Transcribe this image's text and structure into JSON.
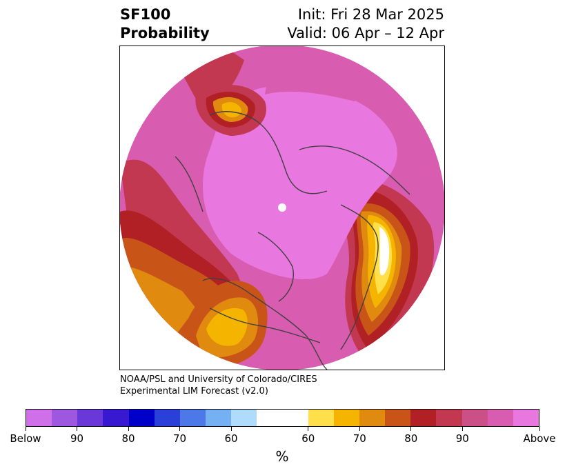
{
  "title": {
    "left_line1": "SF100",
    "left_line2": "Probability",
    "right_line1": "Init: Fri 28 Mar 2025",
    "right_line2": "Valid: 06 Apr – 12 Apr"
  },
  "credit": {
    "line1": "NOAA/PSL and University of Colorado/CIRES",
    "line2": "Experimental LIM Forecast (v2.0)"
  },
  "colorbar": {
    "unit": "%",
    "colors": [
      "#d070e8",
      "#9e58e0",
      "#6a38d8",
      "#3818d0",
      "#0000c8",
      "#2a40d8",
      "#4c78e8",
      "#74b0f2",
      "#b0dcfc",
      "#ffffff",
      "#ffe04a",
      "#f4b400",
      "#e08a10",
      "#c85418",
      "#b02024",
      "#c23850",
      "#cc5088",
      "#d85cb0",
      "#e878e0"
    ],
    "labels": [
      "Below",
      "90",
      "80",
      "70",
      "60",
      "60",
      "70",
      "80",
      "90",
      "Above"
    ]
  },
  "map": {
    "colors": {
      "above_90": "#e878e0",
      "above_85": "#d85cb0",
      "above_80": "#cc5088",
      "above_75": "#c23850",
      "above_70": "#b02024",
      "above_65": "#c85418",
      "above_60": "#e08a10",
      "above_55": "#f4b400",
      "above_50": "#ffe04a",
      "neutral": "#ffffff",
      "coastline": "#404040"
    }
  }
}
